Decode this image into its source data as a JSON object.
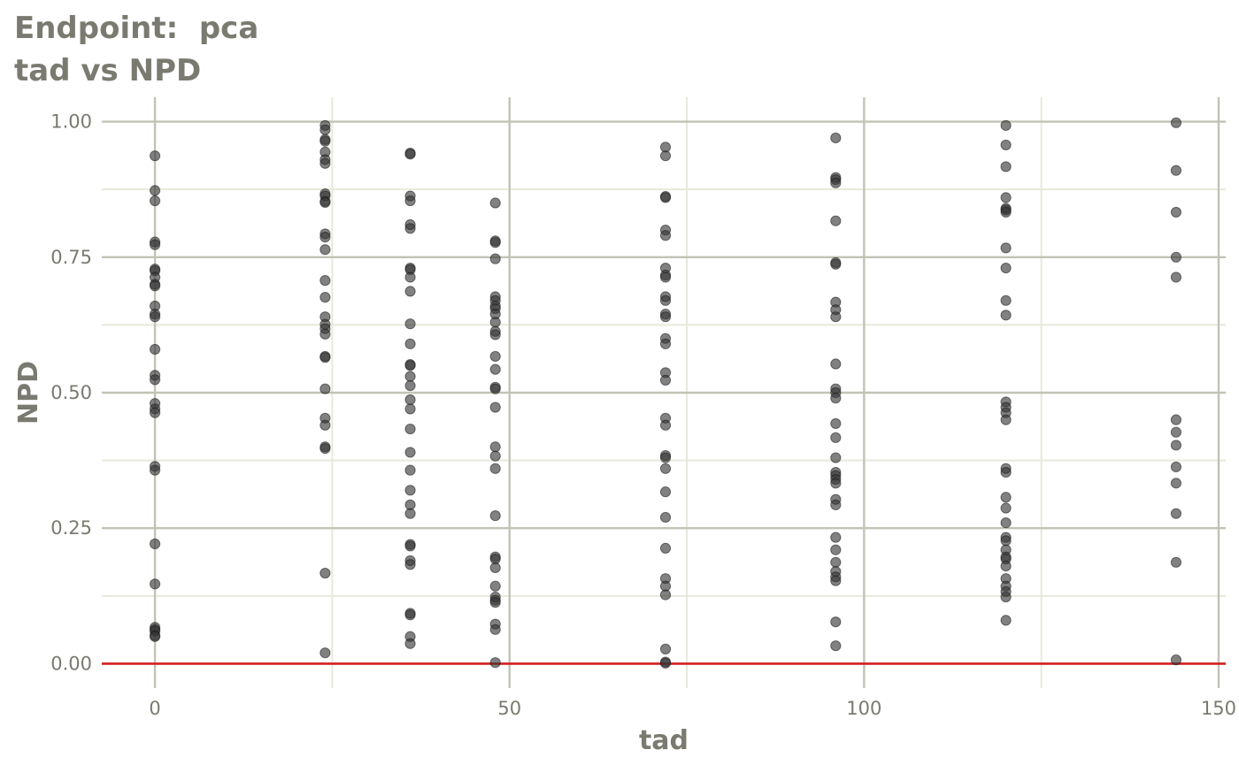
{
  "chart_data": {
    "type": "scatter",
    "title": "Endpoint:  pca",
    "subtitle": "tad vs NPD",
    "xlabel": "tad",
    "ylabel": "NPD",
    "xlim": [
      -7.5,
      151
    ],
    "ylim": [
      -0.045,
      1.045
    ],
    "x_ticks": [
      0,
      50,
      100,
      150
    ],
    "x_tick_labels": [
      "0",
      "50",
      "100",
      "150"
    ],
    "y_ticks": [
      0,
      0.25,
      0.5,
      0.75,
      1
    ],
    "y_tick_labels": [
      "0.00",
      "0.25",
      "0.50",
      "0.75",
      "1.00"
    ],
    "grid": true,
    "reference_line": {
      "y": 0,
      "color": "#d62020"
    },
    "point_color": "#333333",
    "series": [
      {
        "points": [
          [
            0,
            0.937
          ],
          [
            0,
            0.873
          ],
          [
            0,
            0.854
          ],
          [
            0,
            0.778
          ],
          [
            0,
            0.773
          ],
          [
            0,
            0.728
          ],
          [
            0,
            0.725
          ],
          [
            0,
            0.713
          ],
          [
            0,
            0.7
          ],
          [
            0,
            0.697
          ],
          [
            0,
            0.66
          ],
          [
            0,
            0.645
          ],
          [
            0,
            0.64
          ],
          [
            0,
            0.58
          ],
          [
            0,
            0.532
          ],
          [
            0,
            0.524
          ],
          [
            0,
            0.48
          ],
          [
            0,
            0.47
          ],
          [
            0,
            0.463
          ],
          [
            0,
            0.364
          ],
          [
            0,
            0.357
          ],
          [
            0,
            0.221
          ],
          [
            0,
            0.147
          ],
          [
            0,
            0.067
          ],
          [
            0,
            0.063
          ],
          [
            0,
            0.06
          ],
          [
            0,
            0.052
          ],
          [
            0,
            0.05
          ],
          [
            24,
            0.993
          ],
          [
            24,
            0.985
          ],
          [
            24,
            0.967
          ],
          [
            24,
            0.964
          ],
          [
            24,
            0.944
          ],
          [
            24,
            0.93
          ],
          [
            24,
            0.923
          ],
          [
            24,
            0.867
          ],
          [
            24,
            0.863
          ],
          [
            24,
            0.853
          ],
          [
            24,
            0.851
          ],
          [
            24,
            0.793
          ],
          [
            24,
            0.787
          ],
          [
            24,
            0.764
          ],
          [
            24,
            0.707
          ],
          [
            24,
            0.676
          ],
          [
            24,
            0.64
          ],
          [
            24,
            0.626
          ],
          [
            24,
            0.618
          ],
          [
            24,
            0.608
          ],
          [
            24,
            0.567
          ],
          [
            24,
            0.565
          ],
          [
            24,
            0.507
          ],
          [
            24,
            0.453
          ],
          [
            24,
            0.44
          ],
          [
            24,
            0.4
          ],
          [
            24,
            0.397
          ],
          [
            24,
            0.167
          ],
          [
            24,
            0.02
          ],
          [
            36,
            0.942
          ],
          [
            36,
            0.94
          ],
          [
            36,
            0.863
          ],
          [
            36,
            0.854
          ],
          [
            36,
            0.81
          ],
          [
            36,
            0.803
          ],
          [
            36,
            0.73
          ],
          [
            36,
            0.727
          ],
          [
            36,
            0.713
          ],
          [
            36,
            0.687
          ],
          [
            36,
            0.627
          ],
          [
            36,
            0.59
          ],
          [
            36,
            0.552
          ],
          [
            36,
            0.55
          ],
          [
            36,
            0.53
          ],
          [
            36,
            0.513
          ],
          [
            36,
            0.487
          ],
          [
            36,
            0.47
          ],
          [
            36,
            0.433
          ],
          [
            36,
            0.39
          ],
          [
            36,
            0.357
          ],
          [
            36,
            0.32
          ],
          [
            36,
            0.293
          ],
          [
            36,
            0.277
          ],
          [
            36,
            0.22
          ],
          [
            36,
            0.217
          ],
          [
            36,
            0.19
          ],
          [
            36,
            0.183
          ],
          [
            36,
            0.093
          ],
          [
            36,
            0.09
          ],
          [
            36,
            0.05
          ],
          [
            36,
            0.037
          ],
          [
            48,
            0.85
          ],
          [
            48,
            0.78
          ],
          [
            48,
            0.777
          ],
          [
            48,
            0.747
          ],
          [
            48,
            0.677
          ],
          [
            48,
            0.67
          ],
          [
            48,
            0.66
          ],
          [
            48,
            0.655
          ],
          [
            48,
            0.645
          ],
          [
            48,
            0.63
          ],
          [
            48,
            0.613
          ],
          [
            48,
            0.607
          ],
          [
            48,
            0.567
          ],
          [
            48,
            0.543
          ],
          [
            48,
            0.51
          ],
          [
            48,
            0.507
          ],
          [
            48,
            0.473
          ],
          [
            48,
            0.4
          ],
          [
            48,
            0.383
          ],
          [
            48,
            0.36
          ],
          [
            48,
            0.273
          ],
          [
            48,
            0.197
          ],
          [
            48,
            0.193
          ],
          [
            48,
            0.177
          ],
          [
            48,
            0.143
          ],
          [
            48,
            0.123
          ],
          [
            48,
            0.117
          ],
          [
            48,
            0.113
          ],
          [
            48,
            0.073
          ],
          [
            48,
            0.063
          ],
          [
            48,
            0.002
          ],
          [
            72,
            0.953
          ],
          [
            72,
            0.937
          ],
          [
            72,
            0.862
          ],
          [
            72,
            0.86
          ],
          [
            72,
            0.8
          ],
          [
            72,
            0.79
          ],
          [
            72,
            0.73
          ],
          [
            72,
            0.717
          ],
          [
            72,
            0.713
          ],
          [
            72,
            0.677
          ],
          [
            72,
            0.67
          ],
          [
            72,
            0.645
          ],
          [
            72,
            0.64
          ],
          [
            72,
            0.6
          ],
          [
            72,
            0.59
          ],
          [
            72,
            0.537
          ],
          [
            72,
            0.523
          ],
          [
            72,
            0.453
          ],
          [
            72,
            0.44
          ],
          [
            72,
            0.384
          ],
          [
            72,
            0.38
          ],
          [
            72,
            0.36
          ],
          [
            72,
            0.317
          ],
          [
            72,
            0.27
          ],
          [
            72,
            0.213
          ],
          [
            72,
            0.157
          ],
          [
            72,
            0.143
          ],
          [
            72,
            0.127
          ],
          [
            72,
            0.027
          ],
          [
            72,
            0.003
          ],
          [
            72,
            0.001
          ],
          [
            96,
            0.97
          ],
          [
            96,
            0.897
          ],
          [
            96,
            0.893
          ],
          [
            96,
            0.887
          ],
          [
            96,
            0.817
          ],
          [
            96,
            0.74
          ],
          [
            96,
            0.737
          ],
          [
            96,
            0.667
          ],
          [
            96,
            0.653
          ],
          [
            96,
            0.64
          ],
          [
            96,
            0.553
          ],
          [
            96,
            0.507
          ],
          [
            96,
            0.5
          ],
          [
            96,
            0.49
          ],
          [
            96,
            0.443
          ],
          [
            96,
            0.417
          ],
          [
            96,
            0.38
          ],
          [
            96,
            0.353
          ],
          [
            96,
            0.347
          ],
          [
            96,
            0.34
          ],
          [
            96,
            0.333
          ],
          [
            96,
            0.303
          ],
          [
            96,
            0.293
          ],
          [
            96,
            0.233
          ],
          [
            96,
            0.21
          ],
          [
            96,
            0.187
          ],
          [
            96,
            0.17
          ],
          [
            96,
            0.16
          ],
          [
            96,
            0.153
          ],
          [
            96,
            0.077
          ],
          [
            96,
            0.033
          ],
          [
            120,
            0.993
          ],
          [
            120,
            0.957
          ],
          [
            120,
            0.917
          ],
          [
            120,
            0.86
          ],
          [
            120,
            0.84
          ],
          [
            120,
            0.837
          ],
          [
            120,
            0.833
          ],
          [
            120,
            0.767
          ],
          [
            120,
            0.73
          ],
          [
            120,
            0.67
          ],
          [
            120,
            0.643
          ],
          [
            120,
            0.483
          ],
          [
            120,
            0.473
          ],
          [
            120,
            0.463
          ],
          [
            120,
            0.45
          ],
          [
            120,
            0.36
          ],
          [
            120,
            0.353
          ],
          [
            120,
            0.307
          ],
          [
            120,
            0.287
          ],
          [
            120,
            0.26
          ],
          [
            120,
            0.233
          ],
          [
            120,
            0.227
          ],
          [
            120,
            0.21
          ],
          [
            120,
            0.197
          ],
          [
            120,
            0.193
          ],
          [
            120,
            0.18
          ],
          [
            120,
            0.157
          ],
          [
            120,
            0.143
          ],
          [
            120,
            0.133
          ],
          [
            120,
            0.123
          ],
          [
            120,
            0.08
          ],
          [
            144,
            0.998
          ],
          [
            144,
            0.91
          ],
          [
            144,
            0.833
          ],
          [
            144,
            0.75
          ],
          [
            144,
            0.713
          ],
          [
            144,
            0.45
          ],
          [
            144,
            0.427
          ],
          [
            144,
            0.403
          ],
          [
            144,
            0.363
          ],
          [
            144,
            0.333
          ],
          [
            144,
            0.277
          ],
          [
            144,
            0.187
          ],
          [
            144,
            0.007
          ]
        ]
      }
    ]
  }
}
